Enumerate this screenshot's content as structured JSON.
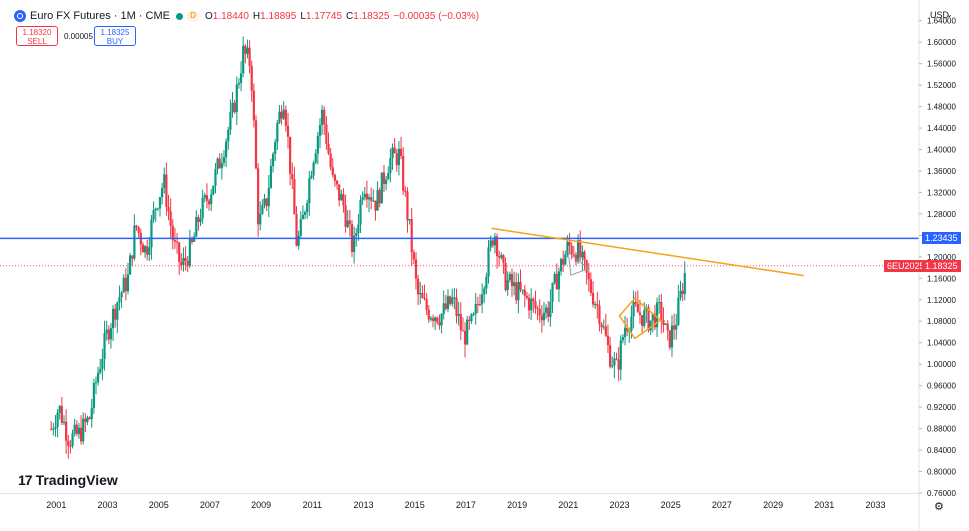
{
  "header": {
    "symbol": "Euro FX Futures · 1M · CME",
    "status_badge": "D",
    "ohlc": [
      {
        "key": "O",
        "value": "1.18440"
      },
      {
        "key": "H",
        "value": "1.18895"
      },
      {
        "key": "L",
        "value": "1.17745"
      },
      {
        "key": "C",
        "value": "1.18325"
      },
      {
        "key": "",
        "value": "−0.00035 (−0.03%)"
      }
    ]
  },
  "trade": {
    "sell_price": "1.18320",
    "sell_label": "SELL",
    "spread": "0.00005",
    "buy_price": "1.18325",
    "buy_label": "BUY"
  },
  "price_scale": {
    "currency": "USD",
    "caret": "⌄"
  },
  "price_tags": {
    "horizontal_line": "1.23435",
    "symbol_label": "6EU2025",
    "last_price": "1.18325"
  },
  "colors": {
    "up": "#089981",
    "down": "#f23645",
    "hline": "#2962ff",
    "drawings": "#f7a21b",
    "last": "#f23645"
  },
  "branding": {
    "logo_text": "TradingView",
    "logo_mark": "17"
  },
  "settings_icon": "gear-icon",
  "chart_data": {
    "type": "candlestick",
    "interval": "1M",
    "x_axis": {
      "ticks": [
        2001,
        2003,
        2005,
        2007,
        2009,
        2011,
        2013,
        2015,
        2017,
        2019,
        2021,
        2023,
        2025,
        2027,
        2029,
        2031,
        2033
      ],
      "range": [
        1998.8,
        2034.7
      ]
    },
    "y_axis": {
      "ticks": [
        "0.76000",
        "0.80000",
        "0.84000",
        "0.88000",
        "0.92000",
        "0.96000",
        "1.00000",
        "1.04000",
        "1.08000",
        "1.12000",
        "1.16000",
        "1.20000",
        "1.24000",
        "1.28000",
        "1.32000",
        "1.36000",
        "1.40000",
        "1.44000",
        "1.48000",
        "1.52000",
        "1.56000",
        "1.60000",
        "1.64000"
      ],
      "range": [
        0.76,
        1.645
      ]
    },
    "price_path": [
      [
        2000.8,
        0.88
      ],
      [
        2001.1,
        0.92
      ],
      [
        2001.5,
        0.86
      ],
      [
        2001.9,
        0.87
      ],
      [
        2002.3,
        0.9
      ],
      [
        2002.6,
        0.98
      ],
      [
        2003.0,
        1.06
      ],
      [
        2003.4,
        1.12
      ],
      [
        2003.8,
        1.16
      ],
      [
        2004.1,
        1.26
      ],
      [
        2004.5,
        1.21
      ],
      [
        2004.9,
        1.3
      ],
      [
        2005.2,
        1.34
      ],
      [
        2005.6,
        1.22
      ],
      [
        2005.9,
        1.18
      ],
      [
        2006.3,
        1.22
      ],
      [
        2006.6,
        1.28
      ],
      [
        2007.0,
        1.32
      ],
      [
        2007.4,
        1.38
      ],
      [
        2007.9,
        1.47
      ],
      [
        2008.3,
        1.58
      ],
      [
        2008.6,
        1.56
      ],
      [
        2008.9,
        1.26
      ],
      [
        2009.2,
        1.3
      ],
      [
        2009.6,
        1.44
      ],
      [
        2009.9,
        1.5
      ],
      [
        2010.4,
        1.22
      ],
      [
        2010.6,
        1.26
      ],
      [
        2011.0,
        1.38
      ],
      [
        2011.4,
        1.47
      ],
      [
        2011.8,
        1.34
      ],
      [
        2012.2,
        1.3
      ],
      [
        2012.6,
        1.21
      ],
      [
        2013.0,
        1.34
      ],
      [
        2013.5,
        1.3
      ],
      [
        2014.0,
        1.38
      ],
      [
        2014.4,
        1.39
      ],
      [
        2014.8,
        1.25
      ],
      [
        2015.1,
        1.13
      ],
      [
        2015.5,
        1.1
      ],
      [
        2016.0,
        1.09
      ],
      [
        2016.5,
        1.12
      ],
      [
        2016.9,
        1.05
      ],
      [
        2017.3,
        1.08
      ],
      [
        2017.8,
        1.18
      ],
      [
        2018.1,
        1.25
      ],
      [
        2018.5,
        1.16
      ],
      [
        2018.9,
        1.14
      ],
      [
        2019.4,
        1.12
      ],
      [
        2019.8,
        1.1
      ],
      [
        2020.2,
        1.1
      ],
      [
        2020.6,
        1.17
      ],
      [
        2021.0,
        1.22
      ],
      [
        2021.4,
        1.21
      ],
      [
        2021.8,
        1.15
      ],
      [
        2022.2,
        1.1
      ],
      [
        2022.6,
        1.02
      ],
      [
        2022.9,
        0.99
      ],
      [
        2023.2,
        1.07
      ],
      [
        2023.6,
        1.1
      ],
      [
        2023.9,
        1.09
      ],
      [
        2024.2,
        1.08
      ],
      [
        2024.6,
        1.1
      ],
      [
        2024.9,
        1.04
      ],
      [
        2025.2,
        1.08
      ],
      [
        2025.6,
        1.18
      ]
    ],
    "annotations": {
      "horizontal_line": 1.23435,
      "trend_line": [
        [
          2018.0,
          1.253
        ],
        [
          2030.2,
          1.165
        ]
      ],
      "diamond": [
        [
          2023.0,
          1.09
        ],
        [
          2023.6,
          1.123
        ],
        [
          2024.6,
          1.082
        ],
        [
          2023.6,
          1.048
        ]
      ],
      "small_triangle": [
        [
          2021.0,
          1.208
        ],
        [
          2021.4,
          1.192
        ],
        [
          2021.8,
          1.178
        ],
        [
          2021.1,
          1.166
        ]
      ],
      "last_price_line": 1.18325
    }
  }
}
